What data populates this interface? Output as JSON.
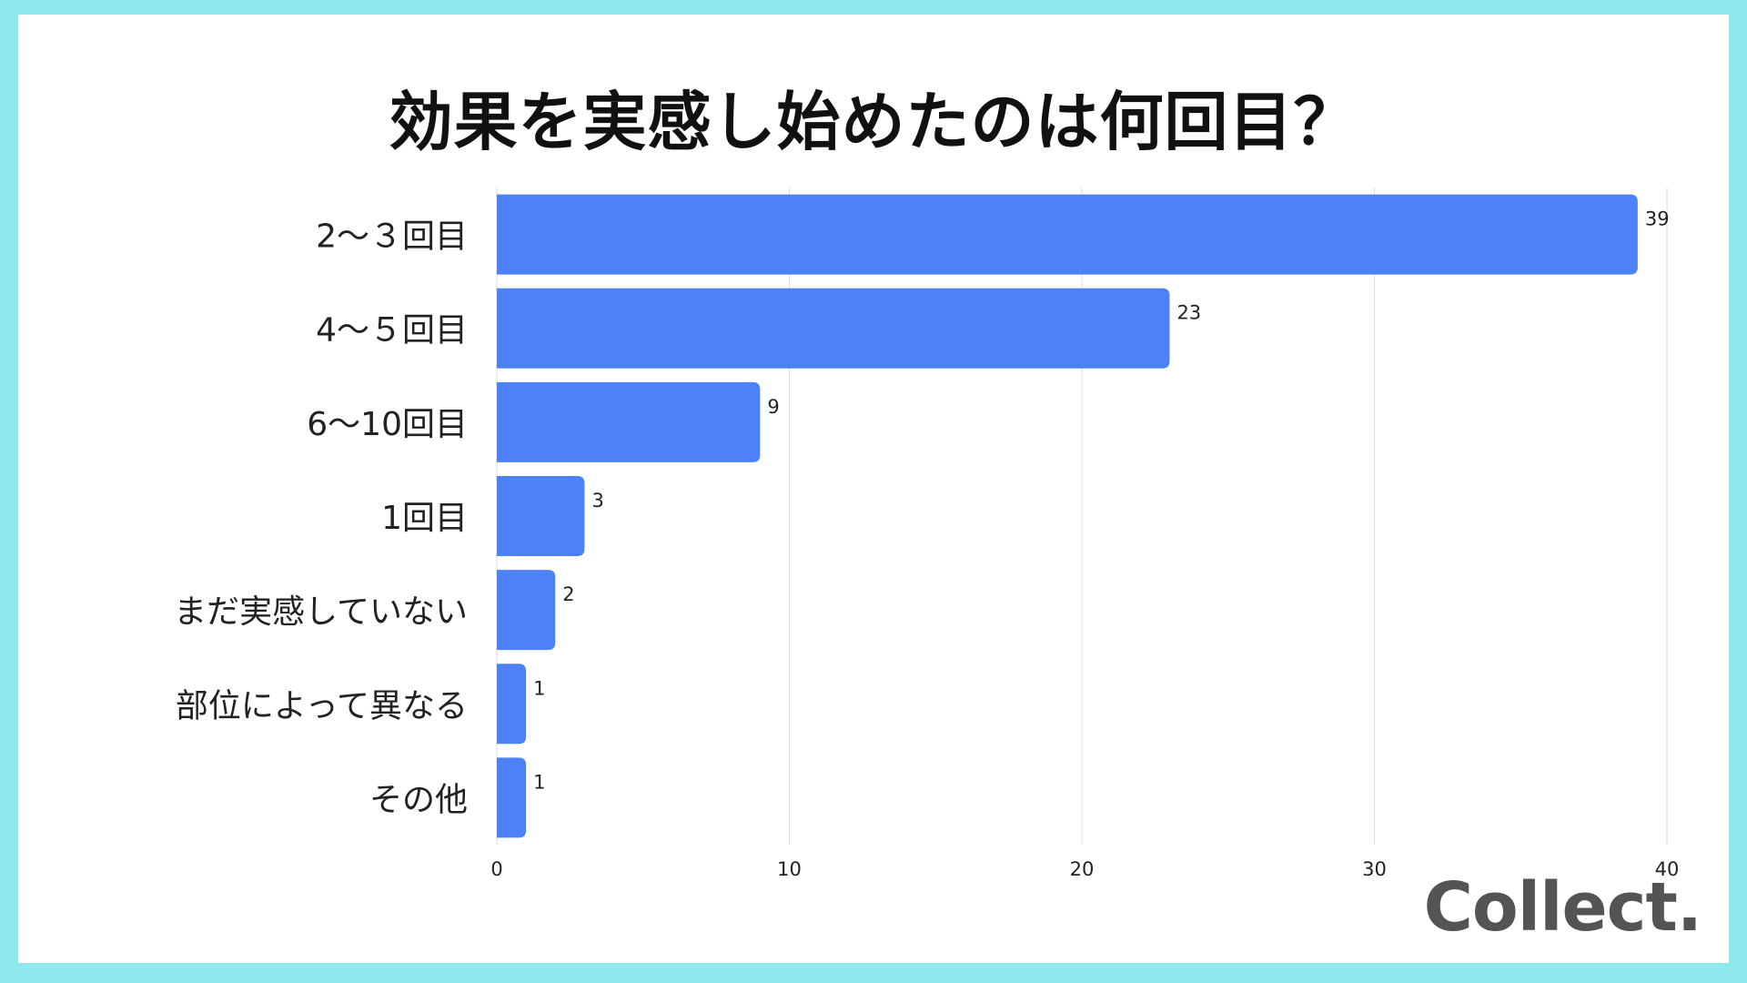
{
  "chart_data": {
    "type": "bar",
    "orientation": "horizontal",
    "title": "効果を実感し始めたのは何回目？",
    "categories": [
      "2〜３回目",
      "4〜５回目",
      "6〜10回目",
      "1回目",
      "まだ実感していない",
      "部位によって異なる",
      "その他"
    ],
    "values": [
      39,
      23,
      9,
      3,
      2,
      1,
      1
    ],
    "xlim": [
      0,
      40
    ],
    "xticks": [
      0,
      10,
      20,
      30,
      40
    ],
    "grid": true,
    "bar_color": "#4d82f6",
    "grid_color": "#dddddd"
  },
  "page": {
    "background_color": "#8fe8ec",
    "logo_text": "Collect."
  }
}
